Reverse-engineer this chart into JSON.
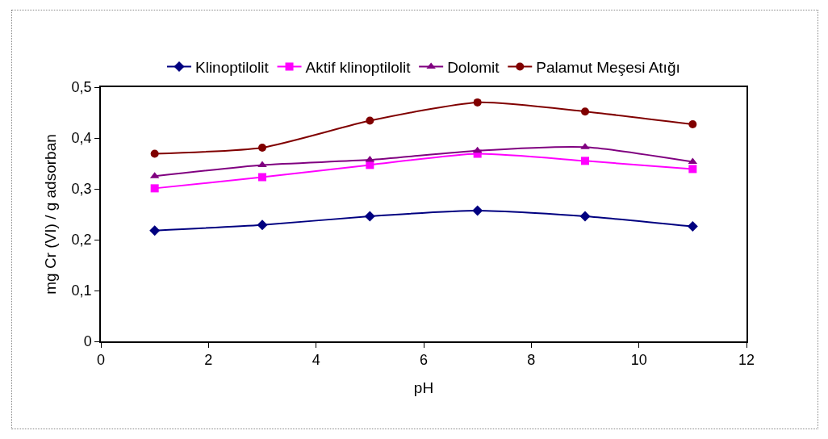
{
  "chart_data": {
    "type": "line",
    "xlabel": "pH",
    "ylabel": "mg Cr (VI) / g adsorban",
    "x": [
      1,
      3,
      5,
      7,
      9,
      11
    ],
    "series": [
      {
        "name": "Klinoptilolit",
        "color": "#000080",
        "marker": "diamond",
        "values": [
          0.218,
          0.229,
          0.246,
          0.257,
          0.246,
          0.226
        ]
      },
      {
        "name": "Aktif klinoptilolit",
        "color": "#ff00ff",
        "marker": "square",
        "values": [
          0.301,
          0.323,
          0.347,
          0.369,
          0.355,
          0.339
        ]
      },
      {
        "name": "Dolomit",
        "color": "#800080",
        "marker": "triangle",
        "values": [
          0.325,
          0.347,
          0.357,
          0.375,
          0.382,
          0.353
        ]
      },
      {
        "name": "Palamut Meşesi Atığı",
        "color": "#800000",
        "marker": "circle",
        "values": [
          0.369,
          0.381,
          0.434,
          0.47,
          0.452,
          0.427
        ]
      }
    ],
    "xlim": [
      0,
      12
    ],
    "xticks": [
      0,
      2,
      4,
      6,
      8,
      10,
      12
    ],
    "ylim": [
      0,
      0.5
    ],
    "yticks": [
      0,
      {
        "value": 0.1,
        "label": "0,1"
      },
      {
        "value": 0.2,
        "label": "0,2"
      },
      {
        "value": 0.3,
        "label": "0,3"
      },
      {
        "value": 0.4,
        "label": "0,4"
      },
      {
        "value": 0.5,
        "label": "0,5"
      }
    ],
    "grid": false,
    "legend": "top",
    "line_style": "solid"
  }
}
